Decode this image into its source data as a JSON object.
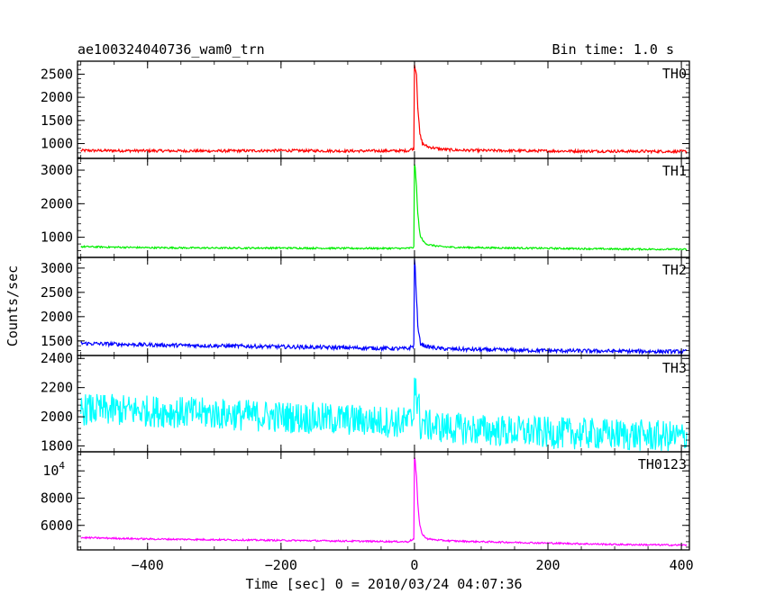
{
  "header": {
    "title_left": "ae100324040736_wam0_trn",
    "title_right": "Bin time: 1.0 s"
  },
  "axes": {
    "xlabel": "Time [sec] 0 = 2010/03/24 04:07:36",
    "ylabel": "Counts/sec"
  },
  "chart_data": {
    "type": "line",
    "title": "ae100324040736_wam0_trn",
    "subtitle": "Bin time: 1.0 s",
    "xlabel": "Time [sec] 0 = 2010/03/24 04:07:36",
    "ylabel": "Counts/sec",
    "xlim": [
      -505,
      412
    ],
    "xticks": [
      -400,
      -200,
      0,
      200,
      400
    ],
    "grid": false,
    "panels": [
      {
        "name": "TH0",
        "color": "#ff0000",
        "ylim": [
          680,
          2780
        ],
        "yticks": [
          1000,
          1500,
          2000,
          2500
        ],
        "ytick_labels": [
          "1000",
          "1500",
          "2000",
          "2500"
        ],
        "series": {
          "x": [
            -500,
            -400,
            -300,
            -200,
            -100,
            -10,
            -1,
            0,
            1,
            3,
            5,
            8,
            12,
            20,
            40,
            60,
            100,
            200,
            300,
            400,
            408
          ],
          "y": [
            850,
            845,
            840,
            850,
            840,
            845,
            900,
            2700,
            2650,
            2500,
            1800,
            1200,
            1000,
            930,
            880,
            860,
            850,
            840,
            835,
            830,
            830
          ]
        }
      },
      {
        "name": "TH1",
        "color": "#00ee00",
        "ylim": [
          400,
          3350
        ],
        "yticks": [
          1000,
          2000,
          3000
        ],
        "ytick_labels": [
          "1000",
          "2000",
          "3000"
        ],
        "series": {
          "x": [
            -500,
            -400,
            -300,
            -200,
            -100,
            -10,
            -1,
            0,
            1,
            3,
            5,
            8,
            12,
            20,
            40,
            60,
            100,
            200,
            300,
            400,
            408
          ],
          "y": [
            720,
            690,
            680,
            680,
            670,
            670,
            700,
            3200,
            3050,
            2500,
            1700,
            1100,
            900,
            780,
            720,
            700,
            690,
            670,
            650,
            640,
            640
          ]
        }
      },
      {
        "name": "TH2",
        "color": "#0000ff",
        "ylim": [
          1200,
          3220
        ],
        "yticks": [
          1500,
          2000,
          2500,
          3000
        ],
        "ytick_labels": [
          "1500",
          "2000",
          "2500",
          "3000"
        ],
        "series": {
          "x": [
            -500,
            -400,
            -300,
            -200,
            -100,
            -10,
            -1,
            0,
            1,
            3,
            5,
            8,
            12,
            20,
            40,
            60,
            100,
            200,
            300,
            400,
            408
          ],
          "y": [
            1450,
            1420,
            1400,
            1380,
            1360,
            1340,
            1400,
            3200,
            3000,
            2400,
            1800,
            1500,
            1420,
            1380,
            1340,
            1330,
            1320,
            1300,
            1290,
            1280,
            1280
          ]
        }
      },
      {
        "name": "TH3",
        "color": "#00ffff",
        "ylim": [
          1760,
          2420
        ],
        "yticks": [
          1800,
          2000,
          2200,
          2400
        ],
        "ytick_labels": [
          "1800",
          "2000",
          "2200",
          "2400"
        ],
        "series": {
          "x": [
            -500,
            -400,
            -300,
            -200,
            -100,
            -10,
            -1,
            0,
            1,
            3,
            5,
            8,
            12,
            20,
            40,
            60,
            100,
            200,
            300,
            400,
            408
          ],
          "y": [
            2050,
            2040,
            2020,
            2000,
            1980,
            1960,
            2000,
            2350,
            2300,
            2150,
            2050,
            1990,
            1960,
            1940,
            1930,
            1920,
            1910,
            1890,
            1880,
            1860,
            1860
          ]
        }
      },
      {
        "name": "TH0123",
        "color": "#ff00ff",
        "ylim": [
          4200,
          11400
        ],
        "yticks": [
          6000,
          8000,
          10000
        ],
        "ytick_labels": [
          "6000",
          "8000",
          "10^4"
        ],
        "series": {
          "x": [
            -500,
            -400,
            -300,
            -200,
            -100,
            -10,
            -1,
            0,
            1,
            3,
            5,
            8,
            12,
            20,
            40,
            60,
            100,
            200,
            300,
            400,
            408
          ],
          "y": [
            5100,
            5000,
            4950,
            4900,
            4850,
            4800,
            5000,
            11000,
            10700,
            9500,
            7600,
            6000,
            5300,
            5000,
            4900,
            4850,
            4800,
            4700,
            4600,
            4550,
            4550
          ]
        }
      }
    ]
  }
}
